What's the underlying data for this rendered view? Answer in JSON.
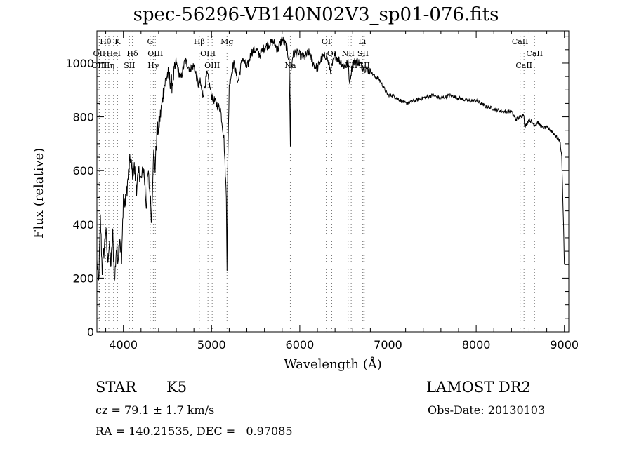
{
  "chart_data": {
    "type": "line",
    "title": "spec-56296-VB140N02V3_sp01-076.fits",
    "xlabel": "Wavelength (Å)",
    "ylabel": "Flux (relative)",
    "xlim": [
      3700,
      9050
    ],
    "ylim": [
      0,
      1120
    ],
    "xticks": [
      4000,
      5000,
      6000,
      7000,
      8000,
      9000
    ],
    "yticks": [
      0,
      200,
      400,
      600,
      800,
      1000
    ],
    "grid": false,
    "series": [
      {
        "x": [
          3700,
          3720,
          3740,
          3760,
          3780,
          3800,
          3820,
          3840,
          3860,
          3880,
          3900,
          3920,
          3940,
          3960,
          3980,
          4000,
          4020,
          4050,
          4080,
          4100,
          4120,
          4150,
          4180,
          4200,
          4230,
          4260,
          4280,
          4300,
          4320,
          4340,
          4360,
          4380,
          4400,
          4430,
          4460,
          4500,
          4550,
          4600,
          4650,
          4700,
          4750,
          4800,
          4850,
          4870,
          4900,
          4950,
          5000,
          5050,
          5100,
          5140,
          5167,
          5175,
          5183,
          5200,
          5250,
          5300,
          5350,
          5400,
          5450,
          5500,
          5550,
          5600,
          5650,
          5700,
          5750,
          5800,
          5850,
          5880,
          5893,
          5900,
          5920,
          5950,
          6000,
          6050,
          6100,
          6150,
          6200,
          6250,
          6300,
          6350,
          6400,
          6450,
          6500,
          6550,
          6563,
          6600,
          6650,
          6700,
          6750,
          6800,
          6850,
          6900,
          6950,
          7000,
          7050,
          7100,
          7150,
          7200,
          7300,
          7400,
          7500,
          7600,
          7700,
          7800,
          7900,
          8000,
          8100,
          8200,
          8300,
          8400,
          8450,
          8500,
          8542,
          8550,
          8600,
          8662,
          8700,
          8750,
          8800,
          8850,
          8900,
          8950,
          8970,
          8990,
          9000
        ],
        "y": [
          260,
          180,
          420,
          230,
          300,
          380,
          270,
          320,
          250,
          360,
          180,
          310,
          280,
          360,
          250,
          510,
          470,
          560,
          650,
          590,
          620,
          540,
          600,
          560,
          610,
          470,
          590,
          520,
          420,
          670,
          610,
          740,
          760,
          830,
          910,
          960,
          920,
          1000,
          940,
          1010,
          980,
          990,
          920,
          930,
          880,
          960,
          880,
          850,
          830,
          720,
          500,
          240,
          600,
          920,
          1000,
          930,
          1020,
          980,
          1040,
          1050,
          1030,
          1060,
          1070,
          1080,
          1050,
          1090,
          1060,
          1010,
          700,
          960,
          1030,
          1040,
          1030,
          1020,
          1040,
          1000,
          980,
          1020,
          1030,
          970,
          1030,
          1010,
          990,
          1000,
          930,
          1000,
          1010,
          990,
          980,
          970,
          950,
          940,
          910,
          880,
          880,
          870,
          860,
          850,
          860,
          870,
          880,
          870,
          880,
          870,
          860,
          860,
          840,
          830,
          820,
          820,
          790,
          800,
          810,
          760,
          790,
          770,
          780,
          760,
          760,
          750,
          730,
          710,
          650,
          400,
          250
        ]
      }
    ],
    "lines": [
      {
        "label": "Hθ",
        "x": 3798,
        "row": 0
      },
      {
        "label": "K",
        "x": 3934,
        "row": 0
      },
      {
        "label": "G",
        "x": 4304,
        "row": 0
      },
      {
        "label": "Hβ",
        "x": 4861,
        "row": 0
      },
      {
        "label": "Mg",
        "x": 5175,
        "row": 0
      },
      {
        "label": "OI",
        "x": 6300,
        "row": 0
      },
      {
        "label": "Li",
        "x": 6708,
        "row": 0
      },
      {
        "label": "CaII",
        "x": 8498,
        "row": 0
      },
      {
        "label": "OII",
        "x": 3727,
        "row": 1
      },
      {
        "label": "HeI",
        "x": 3889,
        "row": 1
      },
      {
        "label": "Hδ",
        "x": 4102,
        "row": 1
      },
      {
        "label": "OIII",
        "x": 4363,
        "row": 1
      },
      {
        "label": "OIII",
        "x": 4959,
        "row": 1
      },
      {
        "label": "OI",
        "x": 6363,
        "row": 1
      },
      {
        "label": "NII",
        "x": 6548,
        "row": 1
      },
      {
        "label": "SII",
        "x": 6717,
        "row": 1
      },
      {
        "label": "CaII",
        "x": 8662,
        "row": 1
      },
      {
        "label": "OIII",
        "x": 3727,
        "row": 2
      },
      {
        "label": "Hη",
        "x": 3835,
        "row": 2
      },
      {
        "label": "SII",
        "x": 4069,
        "row": 2
      },
      {
        "label": "Hγ",
        "x": 4340,
        "row": 2
      },
      {
        "label": "OIII",
        "x": 5007,
        "row": 2
      },
      {
        "label": "Na",
        "x": 5893,
        "row": 2
      },
      {
        "label": "NII",
        "x": 6583,
        "row": 2
      },
      {
        "label": "SII",
        "x": 6731,
        "row": 2
      },
      {
        "label": "CaII",
        "x": 8542,
        "row": 2
      }
    ]
  },
  "info": {
    "class": "STAR",
    "subclass": "K5",
    "survey": "LAMOST DR2",
    "cz": "cz = 79.1 ± 1.7 km/s",
    "obs_date": "Obs-Date: 20130103",
    "radec": "RA = 140.21535, DEC =   0.97085"
  }
}
